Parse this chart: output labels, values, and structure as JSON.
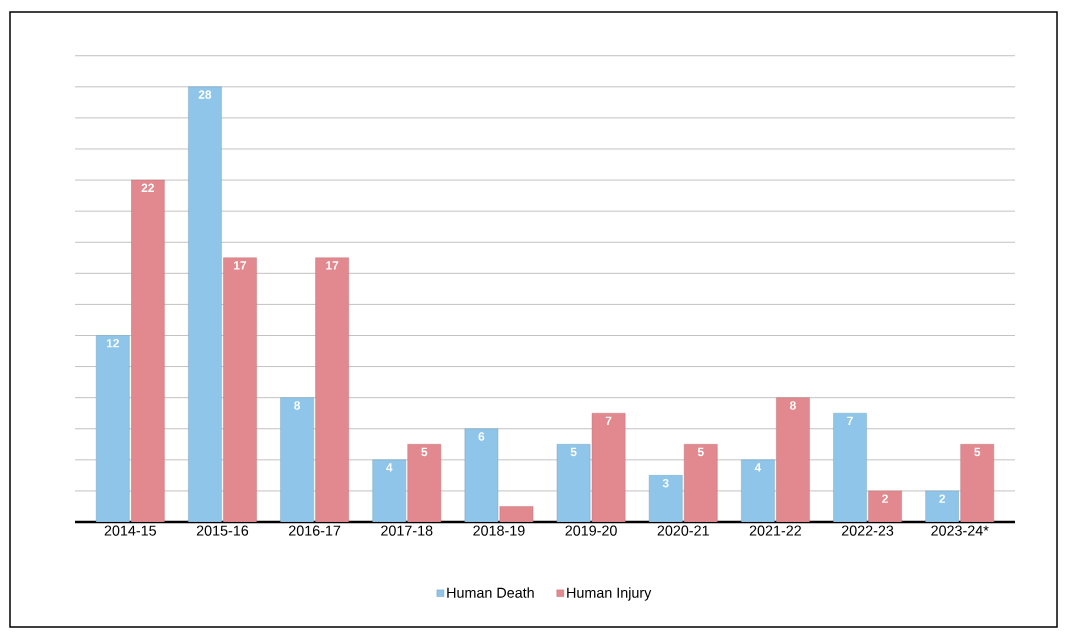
{
  "chart_data": {
    "type": "bar",
    "categories": [
      "2014-15",
      "2015-16",
      "2016-17",
      "2017-18",
      "2018-19",
      "2019-20",
      "2020-21",
      "2021-22",
      "2022-23",
      "2023-24*"
    ],
    "series": [
      {
        "name": "Human Death",
        "color": "#8ec5e8",
        "values": [
          12,
          28,
          8,
          4,
          6,
          5,
          3,
          4,
          7,
          2
        ],
        "value_labels": [
          "12",
          "28",
          "8",
          "4",
          "6",
          "5",
          "3",
          "4",
          "7",
          "2"
        ]
      },
      {
        "name": "Human Injury",
        "color": "#e2898f",
        "values": [
          22,
          17,
          17,
          5,
          1,
          7,
          5,
          8,
          2,
          5
        ],
        "value_labels": [
          "22",
          "17",
          "17",
          "5",
          null,
          "7",
          "5",
          "8",
          "2",
          "5"
        ]
      }
    ],
    "grid": "y",
    "legend": "bottom",
    "tick_labels": "x"
  }
}
